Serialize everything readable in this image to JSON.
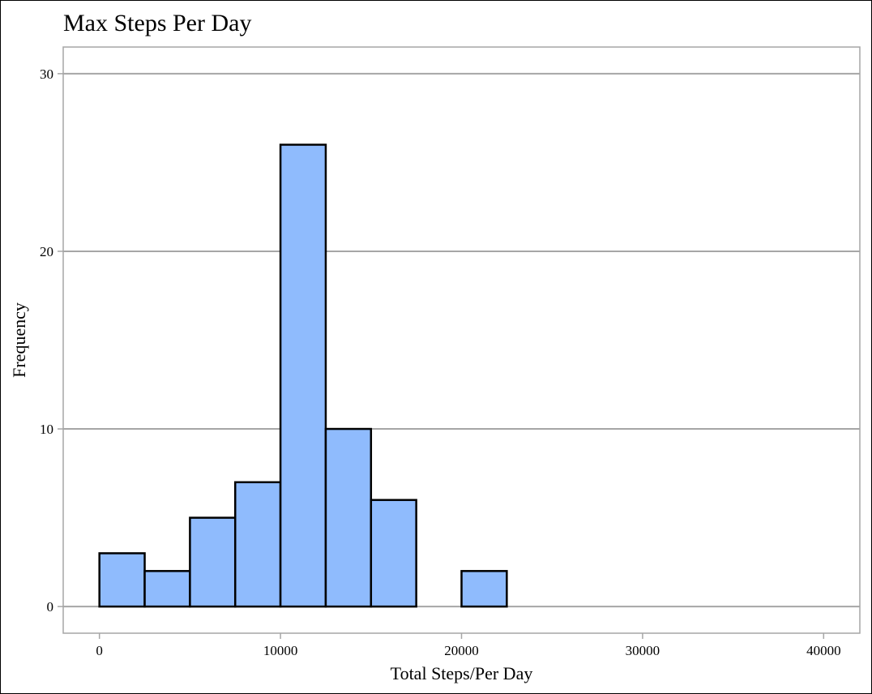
{
  "chart_data": {
    "type": "bar",
    "title": "Max Steps Per Day",
    "xlabel": "Total Steps/Per Day",
    "ylabel": "Frequency",
    "bin_width": 2500,
    "bins": [
      {
        "start": 0,
        "end": 2500,
        "count": 3
      },
      {
        "start": 2500,
        "end": 5000,
        "count": 2
      },
      {
        "start": 5000,
        "end": 7500,
        "count": 5
      },
      {
        "start": 7500,
        "end": 10000,
        "count": 7
      },
      {
        "start": 10000,
        "end": 12500,
        "count": 26
      },
      {
        "start": 12500,
        "end": 15000,
        "count": 10
      },
      {
        "start": 15000,
        "end": 17500,
        "count": 6
      },
      {
        "start": 17500,
        "end": 20000,
        "count": 0
      },
      {
        "start": 20000,
        "end": 22500,
        "count": 2
      },
      {
        "start": 22500,
        "end": 25000,
        "count": 0
      },
      {
        "start": 25000,
        "end": 27500,
        "count": 0
      },
      {
        "start": 27500,
        "end": 30000,
        "count": 0
      },
      {
        "start": 30000,
        "end": 32500,
        "count": 0
      },
      {
        "start": 32500,
        "end": 35000,
        "count": 0
      },
      {
        "start": 35000,
        "end": 37500,
        "count": 0
      },
      {
        "start": 37500,
        "end": 40000,
        "count": 0
      }
    ],
    "xlim": [
      -2000,
      42000
    ],
    "ylim": [
      -1.5,
      31.5
    ],
    "xticks": [
      0,
      10000,
      20000,
      30000,
      40000
    ],
    "xtick_labels": [
      "0",
      "10000",
      "20000",
      "30000",
      "40000"
    ],
    "yticks": [
      0,
      10,
      20,
      30
    ],
    "ytick_labels": [
      "0",
      "10",
      "20",
      "30"
    ],
    "grid": "horizontal",
    "legend": "none",
    "colors": {
      "bar_fill": "#8fbbfd",
      "bar_stroke": "#000000",
      "grid": "#a6a6a6",
      "panel_border": "#a6a6a6",
      "background": "#ffffff"
    }
  }
}
